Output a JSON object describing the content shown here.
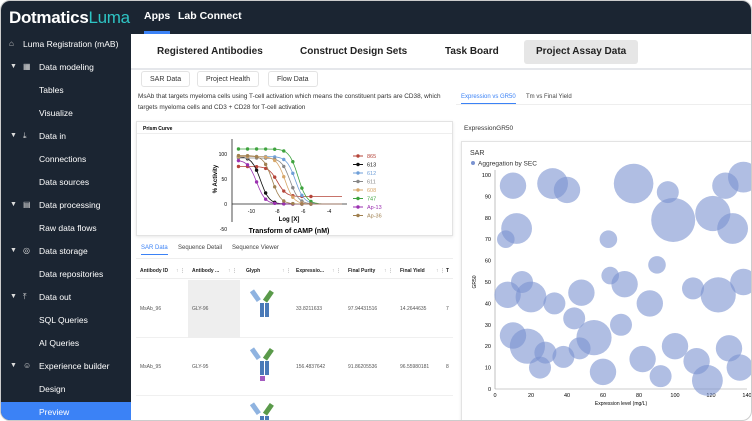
{
  "brand": {
    "name": "Dotmatics",
    "product": "Luma"
  },
  "topnav": {
    "items": [
      "Apps",
      "Lab Connect"
    ]
  },
  "sidebar": {
    "items": [
      {
        "label": "Luma Registration (mAB)",
        "icon": "home-icon"
      },
      {
        "label": "Data modeling",
        "icon": "table-icon"
      },
      {
        "label": "Tables"
      },
      {
        "label": "Visualize"
      },
      {
        "label": "Data in",
        "icon": "download-icon"
      },
      {
        "label": "Connections"
      },
      {
        "label": "Data sources"
      },
      {
        "label": "Data processing",
        "icon": "processing-icon"
      },
      {
        "label": "Raw data flows"
      },
      {
        "label": "Data storage",
        "icon": "database-icon"
      },
      {
        "label": "Data repositories"
      },
      {
        "label": "Data out",
        "icon": "upload-icon"
      },
      {
        "label": "SQL Queries"
      },
      {
        "label": "AI Queries"
      },
      {
        "label": "Experience builder",
        "icon": "smiley-icon"
      },
      {
        "label": "Design"
      },
      {
        "label": "Preview"
      }
    ]
  },
  "tabs": [
    "Registered Antibodies",
    "Construct Design Sets",
    "Task Board",
    "Project Assay Data"
  ],
  "subtabs": [
    "SAR Data",
    "Project Health",
    "Flow Data"
  ],
  "description": "MsAb that targets myeloma cells using T-cell activation which means the constituent parts are CD38, which targets myeloma cells and CD3 + CD28 for T-cell activation",
  "prism": {
    "title": "Prism Curve",
    "ylabel": "% Activity",
    "xlabel": "Log [X]",
    "footer": "Transform of cAMP (nM)",
    "yticks": [
      "150",
      "100",
      "50",
      "0",
      "-50"
    ],
    "xticks": [
      "-10",
      "-8",
      "-6",
      "-4"
    ],
    "legend": [
      {
        "name": "865",
        "color": "#b5453a"
      },
      {
        "name": "613",
        "color": "#111111"
      },
      {
        "name": "612",
        "color": "#6f9fd8"
      },
      {
        "name": "611",
        "color": "#888888"
      },
      {
        "name": "608",
        "color": "#d7a76a"
      },
      {
        "name": "747",
        "color": "#3ea33e"
      },
      {
        "name": "Ap-13",
        "color": "#9b30b0"
      },
      {
        "name": "Ap-36",
        "color": "#a08050"
      }
    ]
  },
  "table_tabs": [
    "SAR Data",
    "Sequence Detail",
    "Sequence Viewer"
  ],
  "table": {
    "columns": [
      "Antibody ID",
      "Antibody ...",
      "Glyph",
      "Expressio...",
      "Final Purity",
      "Final Yield",
      "T"
    ],
    "rows": [
      [
        "MsAb_96",
        "GLY-96",
        "",
        "33.8211633",
        "97.94431516",
        "14.2644635",
        "7"
      ],
      [
        "MsAb_95",
        "GLY-95",
        "",
        "156.4837642",
        "91.86205536",
        "96.55980181",
        "8"
      ]
    ]
  },
  "right_tabs": [
    "Expression vs GR50",
    "Tm vs Final Yield"
  ],
  "right_title": "ExpressionGR50",
  "chart_data": {
    "type": "scatter",
    "title": "SAR",
    "legend": [
      "Aggregation by SEC"
    ],
    "legend_position": "top-left",
    "color": "#7b93d1",
    "xlabel": "Expression level (mg/L)",
    "ylabel": "GR50",
    "xlim": [
      0,
      140
    ],
    "ylim": [
      0,
      100
    ],
    "xticks": [
      0,
      20,
      40,
      60,
      80,
      100,
      120,
      140
    ],
    "yticks": [
      0,
      10,
      20,
      30,
      40,
      50,
      60,
      70,
      80,
      90,
      100
    ],
    "points": [
      [
        10,
        95,
        6
      ],
      [
        32,
        96,
        7
      ],
      [
        40,
        93,
        6
      ],
      [
        77,
        96,
        9
      ],
      [
        96,
        92,
        5
      ],
      [
        128,
        95,
        6
      ],
      [
        138,
        99,
        7
      ],
      [
        12,
        75,
        7
      ],
      [
        6,
        70,
        4
      ],
      [
        63,
        70,
        4
      ],
      [
        99,
        79,
        10
      ],
      [
        121,
        82,
        8
      ],
      [
        132,
        75,
        7
      ],
      [
        7,
        44,
        6
      ],
      [
        15,
        50,
        5
      ],
      [
        20,
        43,
        7
      ],
      [
        33,
        40,
        5
      ],
      [
        48,
        45,
        6
      ],
      [
        72,
        49,
        6
      ],
      [
        86,
        40,
        6
      ],
      [
        110,
        47,
        5
      ],
      [
        124,
        44,
        8
      ],
      [
        138,
        50,
        6
      ],
      [
        10,
        25,
        6
      ],
      [
        18,
        20,
        8
      ],
      [
        28,
        17,
        5
      ],
      [
        38,
        15,
        5
      ],
      [
        47,
        19,
        5
      ],
      [
        55,
        24,
        8
      ],
      [
        70,
        30,
        5
      ],
      [
        82,
        14,
        6
      ],
      [
        100,
        20,
        6
      ],
      [
        112,
        13,
        6
      ],
      [
        130,
        19,
        6
      ],
      [
        136,
        10,
        6
      ],
      [
        25,
        10,
        5
      ],
      [
        60,
        8,
        6
      ],
      [
        92,
        6,
        5
      ],
      [
        118,
        4,
        7
      ],
      [
        44,
        33,
        5
      ],
      [
        64,
        53,
        4
      ],
      [
        90,
        58,
        4
      ]
    ]
  }
}
